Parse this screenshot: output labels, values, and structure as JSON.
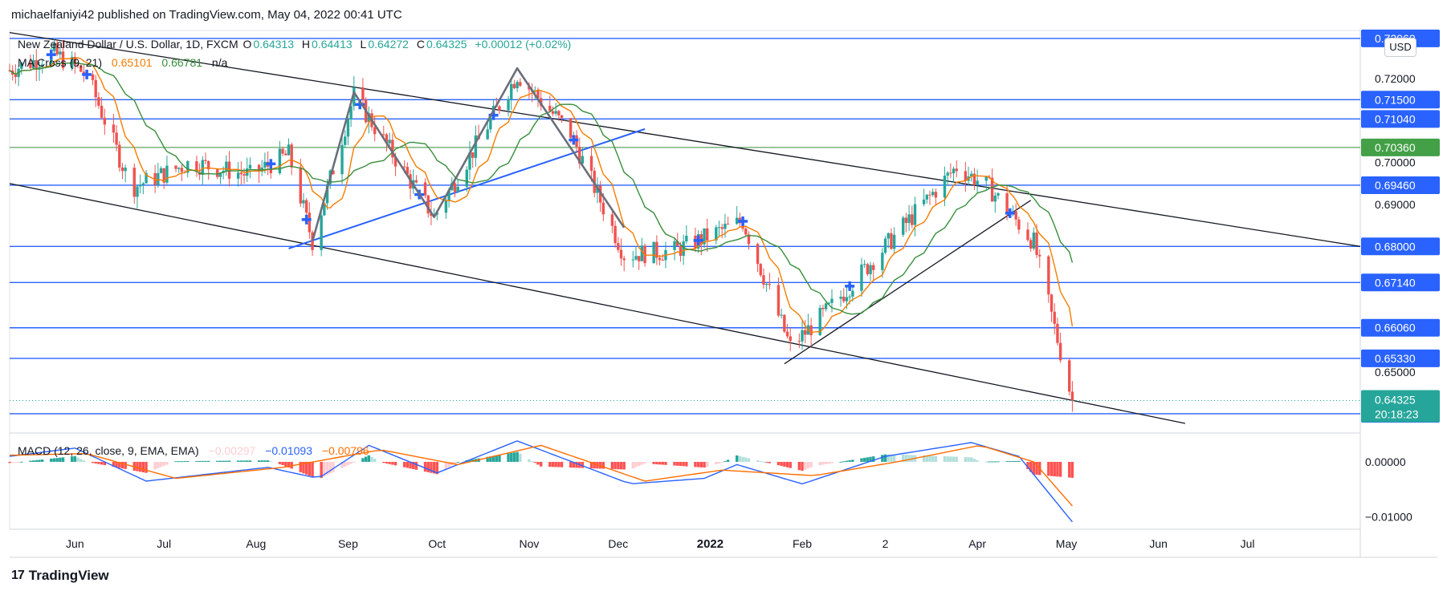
{
  "publisher": "michaelfaniyi42 published on TradingView.com, May 04, 2022 00:41 UTC",
  "brand": {
    "mark": "17",
    "name": "TradingView"
  },
  "currency": "USD",
  "legend": {
    "symbol": "New Zealand Dollar / U.S. Dollar, 1D, FXCM",
    "open_label": "O",
    "open": "0.64313",
    "high_label": "H",
    "high": "0.64413",
    "low_label": "L",
    "low": "0.64272",
    "close_label": "C",
    "close": "0.64325",
    "change": "+0.00012 (+0.02%)",
    "ma_label": "MA Cross (9, 21)",
    "ma_fast": "0.65101",
    "ma_slow": "0.66781",
    "ma_extra": "n/a",
    "macd_label": "MACD (12, 26, close, 9, EMA, EMA)",
    "macd_hist": "−0.00297",
    "macd_line": "−0.01093",
    "macd_signal": "−0.00796"
  },
  "colors": {
    "up": "#26a69a",
    "down": "#ef5350",
    "fast_ma": "#f57c00",
    "slow_ma": "#388e3c",
    "level_line": "#2962ff",
    "level_bg": "#2962ff",
    "price_bg": "#26a69a",
    "green_level_bg": "#43a047",
    "macd_line": "#2962ff",
    "macd_signal": "#ff6d00",
    "hist_up_strong": "#26a69a",
    "hist_up_weak": "#b2dfdb",
    "hist_down_strong": "#ff5252",
    "hist_down_weak": "#ffcdd2"
  },
  "chart_data": {
    "type": "candlestick",
    "title": "New Zealand Dollar / U.S. Dollar, 1D, FXCM",
    "x_ticks": [
      "Jun",
      "Jul",
      "Aug",
      "Sep",
      "Oct",
      "Nov",
      "Dec",
      "2022",
      "Feb",
      "2",
      "Apr",
      "May",
      "Jun",
      "Jul"
    ],
    "x_ticks_bold": [
      "2022"
    ],
    "x_range": [
      "2021-05-10",
      "2022-08-08"
    ],
    "y_ticks": [
      "0.72000",
      "0.70000",
      "0.69000",
      "0.65000"
    ],
    "y_range": [
      0.6355,
      0.7315
    ],
    "horizontal_levels": [
      {
        "label": "0.72960",
        "value": 0.7296
      },
      {
        "label": "0.71500",
        "value": 0.715
      },
      {
        "label": "0.71040",
        "value": 0.7104
      },
      {
        "label": "0.70360",
        "value": 0.7036,
        "color": "green"
      },
      {
        "label": "0.69460",
        "value": 0.6946
      },
      {
        "label": "0.68000",
        "value": 0.68
      },
      {
        "label": "0.67140",
        "value": 0.6714
      },
      {
        "label": "0.66060",
        "value": 0.6606
      },
      {
        "label": "0.65330",
        "value": 0.6533
      },
      {
        "label": "0.64010",
        "value": 0.6401
      }
    ],
    "last_price": {
      "label": "0.64325",
      "value": 0.64325,
      "countdown": "20:18:23"
    },
    "trend_lines": [
      {
        "from": [
          "2021-05-10",
          0.731
        ],
        "to": [
          "2022-08-08",
          0.68
        ]
      },
      {
        "from": [
          "2021-05-10",
          0.695
        ],
        "to": [
          "2022-06-10",
          0.6378
        ]
      },
      {
        "from": [
          "2021-08-12",
          0.6795
        ],
        "to": [
          "2021-12-10",
          0.708
        ],
        "color": "blue"
      },
      {
        "from": [
          "2022-01-26",
          0.652
        ],
        "to": [
          "2022-04-19",
          0.691
        ]
      }
    ],
    "zigzag": [
      [
        "2021-08-20",
        0.6812
      ],
      [
        "2021-09-03",
        0.7168
      ],
      [
        "2021-09-30",
        0.687
      ],
      [
        "2021-10-28",
        0.7225
      ],
      [
        "2021-12-03",
        0.6845
      ]
    ],
    "price_keypoints": [
      [
        "2021-05-10",
        0.722
      ],
      [
        "2021-05-25",
        0.726
      ],
      [
        "2021-06-05",
        0.721
      ],
      [
        "2021-06-20",
        0.694
      ],
      [
        "2021-07-10",
        0.7
      ],
      [
        "2021-07-30",
        0.697
      ],
      [
        "2021-08-12",
        0.702
      ],
      [
        "2021-08-20",
        0.6812
      ],
      [
        "2021-09-03",
        0.716
      ],
      [
        "2021-09-30",
        0.687
      ],
      [
        "2021-10-28",
        0.721
      ],
      [
        "2021-11-15",
        0.707
      ],
      [
        "2021-12-03",
        0.678
      ],
      [
        "2021-12-20",
        0.679
      ],
      [
        "2022-01-12",
        0.686
      ],
      [
        "2022-01-28",
        0.656
      ],
      [
        "2022-02-10",
        0.665
      ],
      [
        "2022-03-01",
        0.68
      ],
      [
        "2022-03-25",
        0.699
      ],
      [
        "2022-04-05",
        0.694
      ],
      [
        "2022-04-20",
        0.681
      ],
      [
        "2022-05-03",
        0.6432
      ]
    ],
    "ma_cross_markers": [
      "2021-05-24",
      "2021-06-05",
      "2021-08-06",
      "2021-08-18",
      "2021-09-05",
      "2021-09-25",
      "2021-10-20",
      "2021-11-16",
      "2021-12-28",
      "2022-01-12",
      "2022-02-17",
      "2022-04-12"
    ],
    "macd": {
      "y_ticks": [
        "0.00000",
        "−0.01000"
      ],
      "y_range": [
        -0.0118,
        0.0048
      ],
      "line_keypoints": [
        [
          "2021-05-10",
          0.001
        ],
        [
          "2021-06-01",
          0.0025
        ],
        [
          "2021-06-25",
          -0.0035
        ],
        [
          "2021-08-05",
          -0.001
        ],
        [
          "2021-08-22",
          -0.003
        ],
        [
          "2021-09-08",
          0.003
        ],
        [
          "2021-10-01",
          -0.002
        ],
        [
          "2021-10-28",
          0.0038
        ],
        [
          "2021-12-05",
          -0.004
        ],
        [
          "2021-12-30",
          -0.003
        ],
        [
          "2022-01-10",
          -0.0005
        ],
        [
          "2022-02-01",
          -0.004
        ],
        [
          "2022-03-01",
          0.001
        ],
        [
          "2022-03-30",
          0.0035
        ],
        [
          "2022-04-15",
          0.001
        ],
        [
          "2022-05-03",
          -0.0109
        ]
      ],
      "signal_keypoints": [
        [
          "2021-05-10",
          0.0012
        ],
        [
          "2021-06-05",
          0.0015
        ],
        [
          "2021-07-05",
          -0.003
        ],
        [
          "2021-08-10",
          -0.001
        ],
        [
          "2021-09-12",
          0.0022
        ],
        [
          "2021-10-08",
          -0.0005
        ],
        [
          "2021-11-05",
          0.003
        ],
        [
          "2021-12-10",
          -0.0035
        ],
        [
          "2022-01-05",
          -0.0015
        ],
        [
          "2022-02-05",
          -0.0025
        ],
        [
          "2022-03-05",
          0.0
        ],
        [
          "2022-04-02",
          0.003
        ],
        [
          "2022-04-20",
          0.0
        ],
        [
          "2022-05-03",
          -0.008
        ]
      ]
    }
  }
}
